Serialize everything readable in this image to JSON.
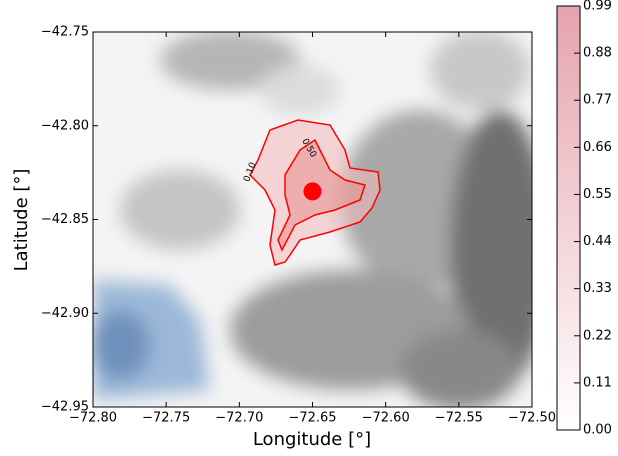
{
  "chart_data": {
    "type": "contour",
    "x_label": "Longitude [°]",
    "y_label": "Latitude [°]",
    "xlim": [
      -72.8,
      -72.5
    ],
    "xticks": [
      {
        "value": -72.8,
        "label": "−72.80"
      },
      {
        "value": -72.75,
        "label": "−72.75"
      },
      {
        "value": -72.7,
        "label": "−72.70"
      },
      {
        "value": -72.65,
        "label": "−72.65"
      },
      {
        "value": -72.6,
        "label": "−72.60"
      },
      {
        "value": -72.55,
        "label": "−72.55"
      },
      {
        "value": -72.5,
        "label": "−72.50"
      }
    ],
    "ylim": [
      -42.95,
      -42.75
    ],
    "yticks": [
      {
        "value": -42.95,
        "label": "−42.95"
      },
      {
        "value": -42.9,
        "label": "−42.90"
      },
      {
        "value": -42.85,
        "label": "−42.85"
      },
      {
        "value": -42.8,
        "label": "−42.80"
      },
      {
        "value": -42.75,
        "label": "−42.75"
      }
    ],
    "contours": [
      {
        "level": 0.1,
        "label": "0.10"
      },
      {
        "level": 0.5,
        "label": "0.50"
      }
    ],
    "vent": {
      "x": -72.65,
      "y": -42.835
    },
    "color": "#ff0000",
    "colorbar": {
      "lim": [
        0,
        0.99
      ],
      "ticks": [
        {
          "value": 0,
          "label": "0.00"
        },
        0.11,
        0.22,
        0.33,
        0.44,
        0.55,
        0.66,
        0.77,
        0.88,
        0.99
      ]
    }
  }
}
